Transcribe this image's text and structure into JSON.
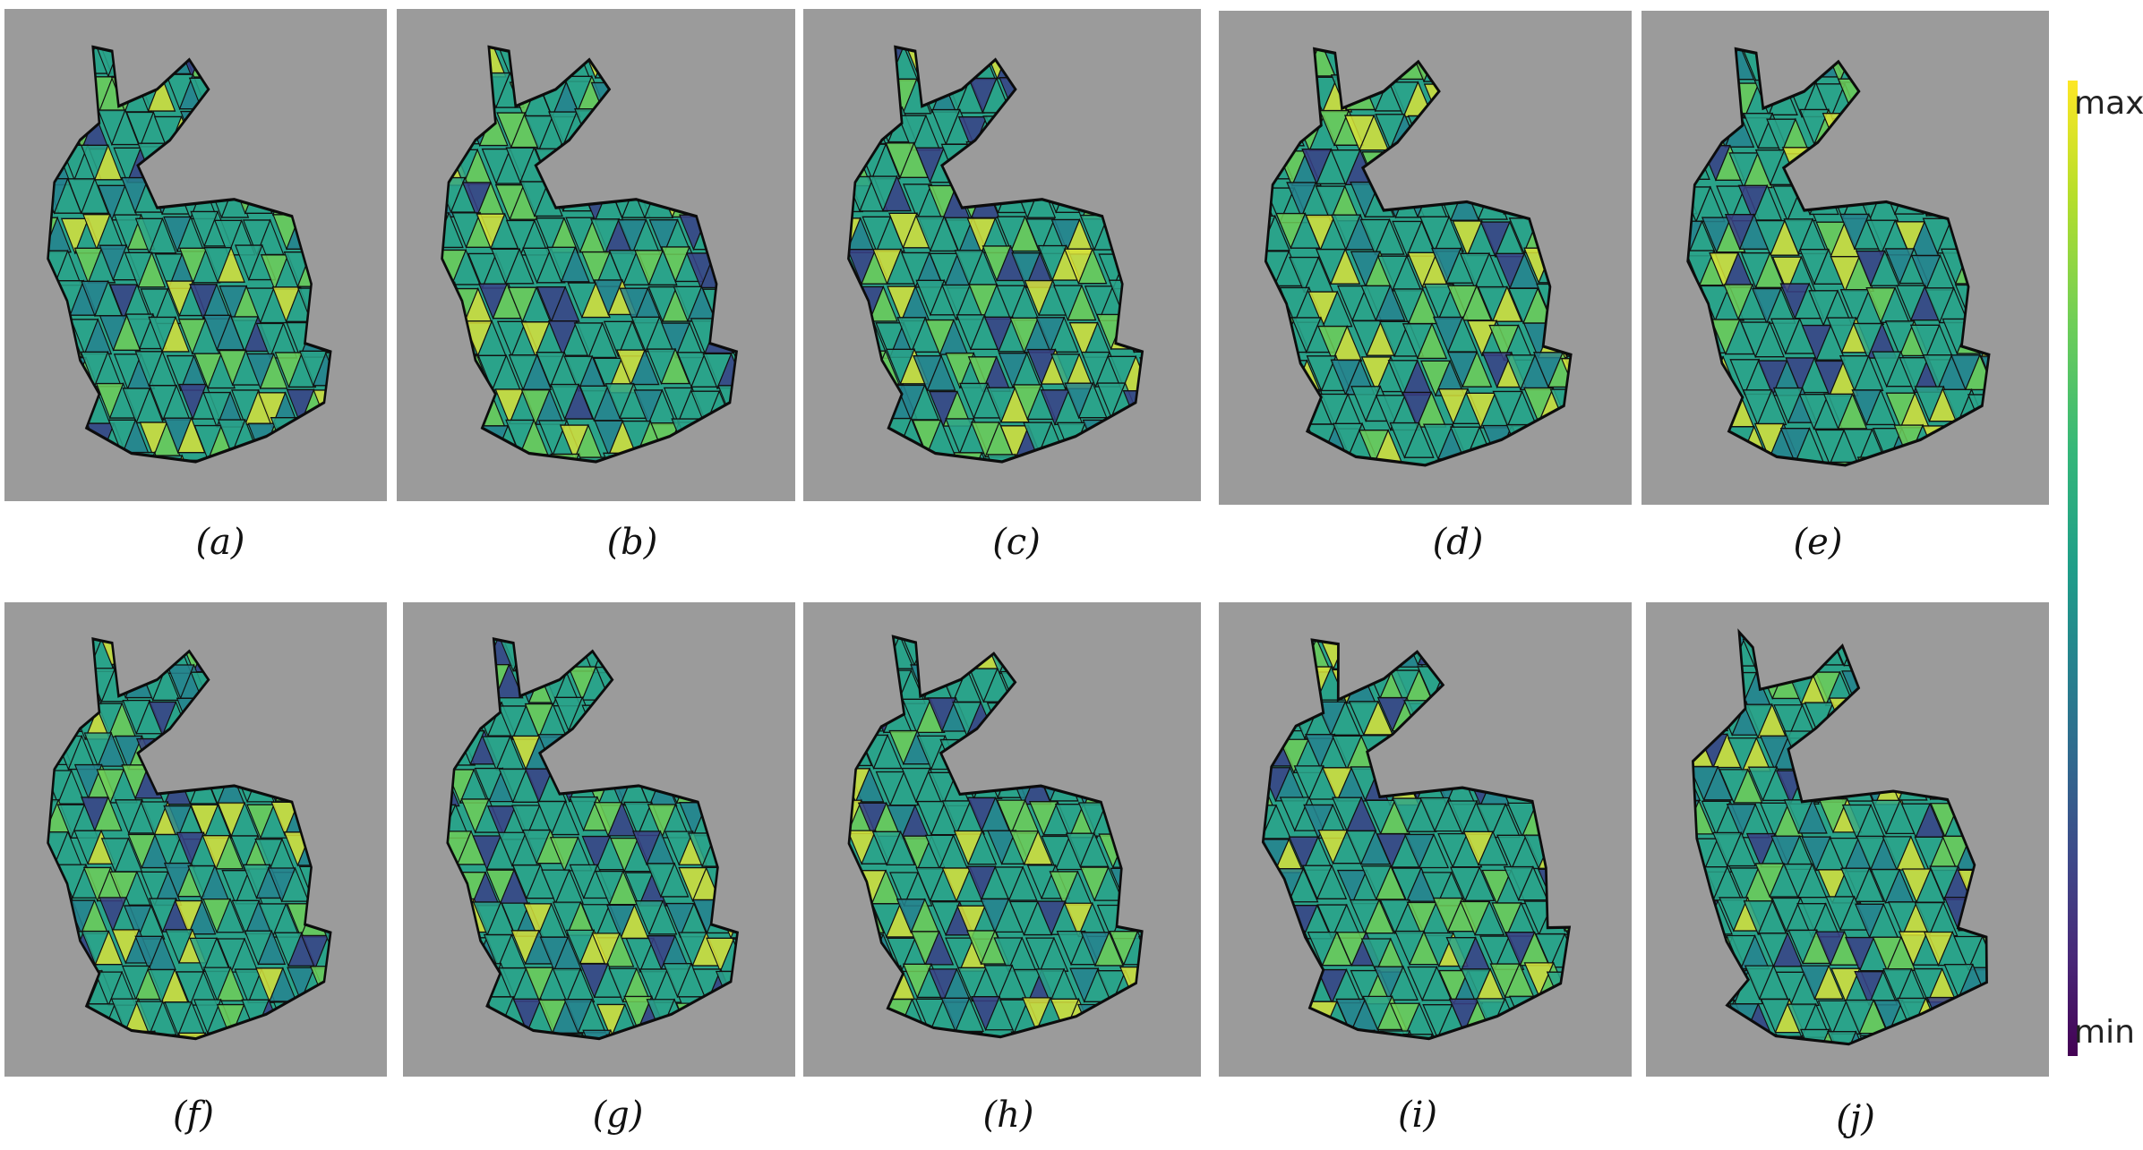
{
  "captions": {
    "a": "(a)",
    "b": "(b)",
    "c": "(c)",
    "d": "(d)",
    "e": "(e)",
    "f": "(f)",
    "g": "(g)",
    "h": "(h)",
    "i": "(i)",
    "j": "(j)"
  },
  "colorbar": {
    "max_label": "max",
    "min_label": "min",
    "colormap": [
      "#440154",
      "#482878",
      "#3e4989",
      "#31688e",
      "#26828e",
      "#1f9e89",
      "#35b779",
      "#6ece58",
      "#b5de2b",
      "#fde725"
    ]
  },
  "panel_background": "#9b9b9b",
  "mesh_colors": {
    "base": "#2aa38a",
    "dark": "#3a3f86",
    "highlight": "#d8e23a",
    "edge": "#111111"
  }
}
